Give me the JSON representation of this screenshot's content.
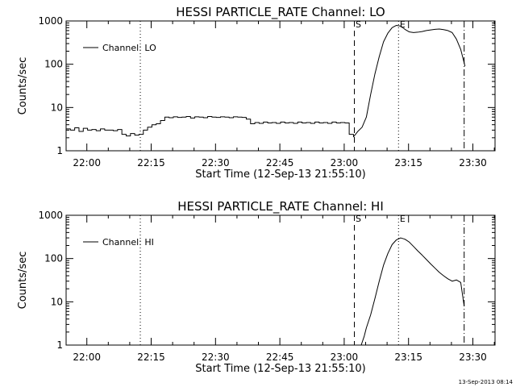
{
  "chart_data": [
    {
      "type": "line",
      "title": "HESSI PARTICLE_RATE Channel: LO",
      "xlabel": "Start Time (12-Sep-13 21:55:10)",
      "ylabel": "Counts/sec",
      "x_unit": "minutes after 21:55:10",
      "xlim": [
        0,
        100
      ],
      "ylim": [
        1,
        1000
      ],
      "yscale": "log",
      "x_ticks": [
        "22:00",
        "22:15",
        "22:30",
        "22:45",
        "23:00",
        "23:15",
        "23:30"
      ],
      "y_ticks": [
        "1",
        "10",
        "100",
        "1000"
      ],
      "legend": {
        "label": "Channel: LO",
        "placement": "top-left"
      },
      "markers": [
        {
          "x": 17.3,
          "style": "dotted",
          "label": ""
        },
        {
          "x": 67.2,
          "style": "dashed",
          "label": "S"
        },
        {
          "x": 77.5,
          "style": "dotted",
          "label": "E"
        },
        {
          "x": 92.8,
          "style": "dashdot",
          "label": ""
        }
      ],
      "series": [
        {
          "name": "Channel: LO",
          "x": [
            0,
            1,
            2,
            3,
            4,
            5,
            6,
            7,
            8,
            9,
            10,
            11,
            12,
            13,
            14,
            15,
            16,
            17,
            18,
            19,
            20,
            21,
            22,
            23,
            24,
            25,
            26,
            27,
            28,
            29,
            30,
            31,
            32,
            33,
            34,
            35,
            36,
            37,
            38,
            39,
            40,
            41,
            42,
            43,
            44,
            45,
            46,
            47,
            48,
            49,
            50,
            51,
            52,
            53,
            54,
            55,
            56,
            57,
            58,
            59,
            60,
            61,
            62,
            63,
            64,
            65,
            66,
            67,
            68,
            69,
            70,
            71,
            72,
            73,
            74,
            75,
            76,
            77,
            78,
            79,
            80,
            81,
            82,
            83,
            84,
            85,
            86,
            87,
            88,
            89,
            90,
            91,
            92,
            93
          ],
          "values": [
            3.2,
            3,
            3.4,
            2.8,
            3.3,
            3,
            3.1,
            2.9,
            3.2,
            3,
            3,
            2.9,
            3.1,
            2.4,
            2.2,
            2.5,
            2.3,
            2.4,
            3,
            3.5,
            4,
            4.2,
            5,
            6,
            5.8,
            6.1,
            5.9,
            6,
            6.2,
            5.7,
            6.1,
            6,
            5.8,
            6.2,
            6,
            5.9,
            6.1,
            6,
            5.8,
            6.1,
            6,
            5.9,
            5.4,
            4.2,
            4.5,
            4.3,
            4.6,
            4.4,
            4.5,
            4.3,
            4.6,
            4.4,
            4.5,
            4.3,
            4.6,
            4.4,
            4.5,
            4.3,
            4.6,
            4.4,
            4.5,
            4.3,
            4.6,
            4.4,
            4.5,
            4.4,
            2.4,
            2.1,
            2.8,
            3.5,
            6,
            20,
            60,
            150,
            330,
            520,
            700,
            790,
            760,
            640,
            560,
            540,
            550,
            570,
            600,
            620,
            640,
            650,
            630,
            600,
            540,
            380,
            220,
            90
          ]
        }
      ]
    },
    {
      "type": "line",
      "title": "HESSI PARTICLE_RATE Channel: HI",
      "xlabel": "Start Time (12-Sep-13 21:55:10)",
      "ylabel": "Counts/sec",
      "x_unit": "minutes after 21:55:10",
      "xlim": [
        0,
        100
      ],
      "ylim": [
        1,
        1000
      ],
      "yscale": "log",
      "x_ticks": [
        "22:00",
        "22:15",
        "22:30",
        "22:45",
        "23:00",
        "23:15",
        "23:30"
      ],
      "y_ticks": [
        "1",
        "10",
        "100",
        "1000"
      ],
      "legend": {
        "label": "Channel: HI",
        "placement": "top-left"
      },
      "markers": [
        {
          "x": 17.3,
          "style": "dotted",
          "label": ""
        },
        {
          "x": 67.2,
          "style": "dashed",
          "label": "S"
        },
        {
          "x": 77.5,
          "style": "dotted",
          "label": "E"
        },
        {
          "x": 92.8,
          "style": "dashdot",
          "label": ""
        }
      ],
      "series": [
        {
          "name": "Channel: HI",
          "x": [
            68.8,
            69.5,
            70,
            71,
            72,
            73,
            74,
            75,
            76,
            77,
            78,
            79,
            80,
            81,
            82,
            83,
            84,
            85,
            86,
            87,
            88,
            89,
            90,
            91,
            92,
            92.8
          ],
          "values": [
            1,
            1.6,
            2.5,
            5,
            12,
            30,
            70,
            130,
            210,
            270,
            300,
            280,
            240,
            190,
            150,
            120,
            95,
            75,
            60,
            48,
            40,
            34,
            30,
            32,
            28,
            8
          ]
        }
      ]
    }
  ],
  "footer": {
    "timestamp": "13-Sep-2013 08:14"
  },
  "style": {
    "line_color": "#000000",
    "background": "#ffffff"
  }
}
